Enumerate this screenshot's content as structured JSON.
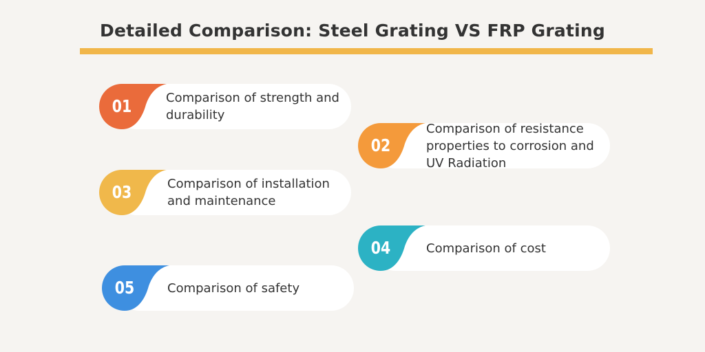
{
  "title": "Detailed Comparison: Steel Grating VS FRP Grating",
  "colors": {
    "background": "#f6f4f1",
    "underline": "#f1b64a",
    "card": "#ffffff",
    "text": "#333333"
  },
  "items": [
    {
      "number": "01",
      "label": "Comparison of strength and durability",
      "color": "#ea6b3b"
    },
    {
      "number": "02",
      "label": "Comparison of resistance properties to corrosion and UV Radiation",
      "color": "#f49a3b"
    },
    {
      "number": "03",
      "label": "Comparison of installation and maintenance",
      "color": "#f0b84b"
    },
    {
      "number": "04",
      "label": "Comparison of cost",
      "color": "#2cb2c4"
    },
    {
      "number": "05",
      "label": "Comparison of safety",
      "color": "#3e8fe0"
    }
  ]
}
